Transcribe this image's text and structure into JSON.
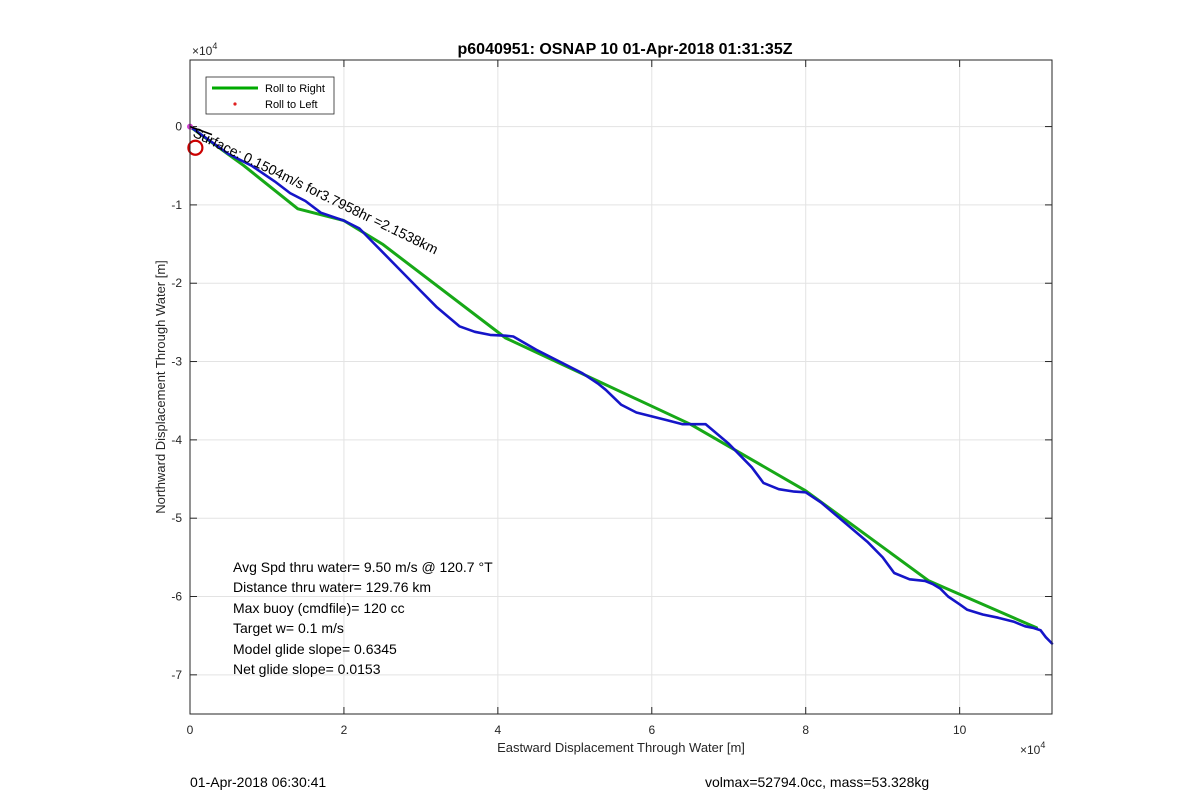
{
  "chart_data": {
    "type": "line",
    "title": "p6040951: OSNAP 10 01-Apr-2018 01:31:35Z",
    "xlabel": "Eastward Displacement Through Water [m]",
    "ylabel": "Northward Displacement Through Water [m]",
    "x_exponent_label": "×10",
    "x_exponent_power": "4",
    "y_exponent_label": "×10",
    "y_exponent_power": "4",
    "xlim": [
      0,
      112000
    ],
    "ylim": [
      -75000,
      8500
    ],
    "x_tick_values": [
      0,
      20000,
      40000,
      60000,
      80000,
      100000
    ],
    "x_tick_labels": [
      "0",
      "2",
      "4",
      "6",
      "8",
      "10"
    ],
    "y_tick_values": [
      0,
      -10000,
      -20000,
      -30000,
      -40000,
      -50000,
      -60000,
      -70000
    ],
    "y_tick_labels": [
      "0",
      "-1",
      "-2",
      "-3",
      "-4",
      "-5",
      "-6",
      "-7"
    ],
    "grid": true,
    "legend_position": "top-left",
    "legend": [
      {
        "label": "Roll to Right",
        "color": "#00aa00",
        "style": "line"
      },
      {
        "label": "Roll to Left",
        "color": "#e02020",
        "style": "dot"
      }
    ],
    "series": [
      {
        "name": "Roll to Right",
        "color": "#17a817",
        "x": [
          0,
          7000,
          14000,
          20000,
          25000,
          41000,
          65000,
          80000,
          96000,
          110000
        ],
        "y": [
          0,
          -5000,
          -10500,
          -12000,
          -15000,
          -27000,
          -38000,
          -46500,
          -58000,
          -64000
        ]
      },
      {
        "color": "#1515c8",
        "x": [
          0,
          5000,
          8000,
          11000,
          13000,
          15000,
          17000,
          20000,
          22000,
          24000,
          27000,
          30000,
          32000,
          35000,
          37000,
          39000,
          41000,
          42000,
          45000,
          48000,
          51000,
          53000,
          54000,
          56000,
          58000,
          60000,
          62000,
          64000,
          65500,
          67000,
          70000,
          73000,
          74500,
          76500,
          78500,
          80000,
          82000,
          85000,
          88000,
          90000,
          91500,
          93500,
          95500,
          96500,
          97500,
          98500,
          100000,
          101000,
          103000,
          105000,
          107000,
          108500,
          109500,
          110500,
          111200,
          112000
        ],
        "y": [
          0,
          -3500,
          -5000,
          -7000,
          -8500,
          -9500,
          -11000,
          -12000,
          -13000,
          -15000,
          -18000,
          -21000,
          -23000,
          -25500,
          -26200,
          -26600,
          -26700,
          -26800,
          -28500,
          -30000,
          -31500,
          -32800,
          -33600,
          -35500,
          -36500,
          -37000,
          -37500,
          -38000,
          -38000,
          -38000,
          -40500,
          -43500,
          -45500,
          -46300,
          -46600,
          -46700,
          -48000,
          -50500,
          -53000,
          -55000,
          -57000,
          -57800,
          -58000,
          -58400,
          -59000,
          -60000,
          -61000,
          -61700,
          -62300,
          -62700,
          -63200,
          -63800,
          -64000,
          -64300,
          -65200,
          -66000
        ]
      }
    ],
    "start_marker": {
      "x": 700,
      "y": -2700,
      "color": "#cc0000"
    },
    "start_point": {
      "x": 0,
      "y": 0,
      "color": "#d040d0"
    },
    "vector_label": "Surface: 0.1504m/s for3.7958hr =2.1538km",
    "annotations": [
      "Avg Spd thru water=  9.50 m/s @ 120.7 °T",
      "Distance thru water= 129.76 km",
      "Max buoy (cmdfile)= 120 cc",
      "Target w= 0.1 m/s",
      "Model glide slope= 0.6345",
      "Net glide slope= 0.0153"
    ]
  },
  "footer": {
    "left": "01-Apr-2018 06:30:41",
    "right": "volmax=52794.0cc, mass=53.328kg"
  }
}
